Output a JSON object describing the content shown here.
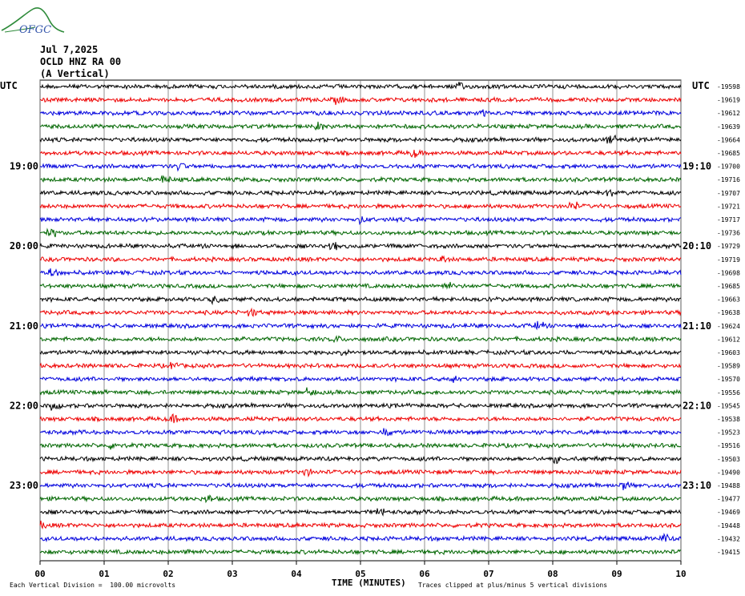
{
  "header": {
    "logo_text": "OFGC",
    "date": "Jul 7,2025",
    "station": "OCLD HNZ RA 00",
    "component": "(A Vertical)"
  },
  "footer": {
    "scale_note": "Each Vertical Division =  100.00 microvolts",
    "clip_note": "Traces clipped at plus/minus 5 vertical divisions"
  },
  "chart_data": {
    "type": "line",
    "title": "",
    "xlabel": "TIME (MINUTES)",
    "x_ticks": [
      "00",
      "01",
      "02",
      "03",
      "04",
      "05",
      "06",
      "07",
      "08",
      "09",
      "10"
    ],
    "xlim": [
      0,
      10
    ],
    "left_axis_label": "UTC",
    "right_axis_label": "UTC",
    "trace_colors": [
      "#000000",
      "#ee0000",
      "#0000dd",
      "#006600"
    ],
    "left_time_labels": [
      {
        "trace": 6,
        "label": "19:00"
      },
      {
        "trace": 12,
        "label": "20:00"
      },
      {
        "trace": 18,
        "label": "21:00"
      },
      {
        "trace": 24,
        "label": "22:00"
      },
      {
        "trace": 30,
        "label": "23:00"
      }
    ],
    "right_time_labels": [
      {
        "trace": 6,
        "label": "19:10"
      },
      {
        "trace": 12,
        "label": "20:10"
      },
      {
        "trace": 18,
        "label": "21:10"
      },
      {
        "trace": 24,
        "label": "22:10"
      },
      {
        "trace": 30,
        "label": "23:10"
      }
    ],
    "trace_offsets": [
      "-19598",
      "-19619",
      "-19612",
      "-19639",
      "-19664",
      "-19685",
      "-19700",
      "-19716",
      "-19707",
      "-19721",
      "-19717",
      "-19736",
      "-19729",
      "-19719",
      "-19698",
      "-19685",
      "-19663",
      "-19638",
      "-19624",
      "-19612",
      "-19603",
      "-19589",
      "-19570",
      "-19556",
      "-19545",
      "-19538",
      "-19523",
      "-19516",
      "-19503",
      "-19490",
      "-19488",
      "-19477",
      "-19469",
      "-19448",
      "-19432",
      "-19415"
    ]
  }
}
